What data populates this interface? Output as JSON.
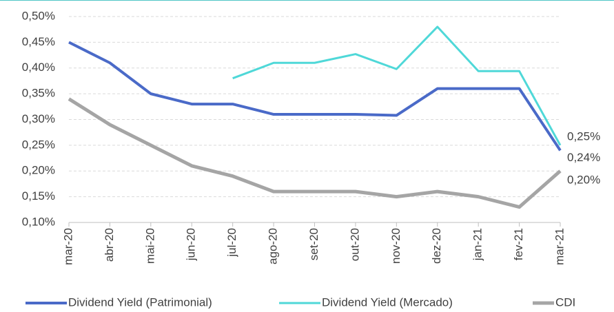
{
  "chart_data": {
    "type": "line",
    "categories": [
      "mar-20",
      "abr-20",
      "mai-20",
      "jun-20",
      "jul-20",
      "ago-20",
      "set-20",
      "out-20",
      "nov-20",
      "dez-20",
      "jan-21",
      "fev-21",
      "mar-21"
    ],
    "series": [
      {
        "name": "Dividend Yield (Patrimonial)",
        "color": "#4a6ac8",
        "values": [
          0.45,
          0.41,
          0.35,
          0.33,
          0.33,
          0.31,
          0.31,
          0.31,
          0.308,
          0.36,
          0.36,
          0.36,
          0.24
        ],
        "value_labels": [
          null,
          null,
          null,
          null,
          null,
          null,
          null,
          null,
          null,
          null,
          null,
          null,
          "0,24%"
        ]
      },
      {
        "name": "Dividend Yield (Mercado)",
        "color": "#4fd8d8",
        "values": [
          null,
          null,
          null,
          null,
          0.38,
          0.41,
          0.41,
          0.427,
          0.398,
          0.48,
          0.394,
          0.394,
          0.25
        ],
        "value_labels": [
          null,
          null,
          null,
          null,
          null,
          null,
          null,
          null,
          null,
          null,
          null,
          null,
          "0,25%"
        ]
      },
      {
        "name": "CDI",
        "color": "#a5a5a5",
        "values": [
          0.34,
          0.29,
          0.25,
          0.21,
          0.19,
          0.16,
          0.16,
          0.16,
          0.15,
          0.16,
          0.15,
          0.13,
          0.2
        ],
        "value_labels": [
          null,
          null,
          null,
          null,
          null,
          null,
          null,
          null,
          null,
          null,
          null,
          null,
          "0,20%"
        ]
      }
    ],
    "ylim": [
      0.1,
      0.5
    ],
    "yticks": [
      {
        "value": 0.1,
        "label": "0,10%"
      },
      {
        "value": 0.15,
        "label": "0,15%"
      },
      {
        "value": 0.2,
        "label": "0,20%"
      },
      {
        "value": 0.25,
        "label": "0,25%"
      },
      {
        "value": 0.3,
        "label": "0,30%"
      },
      {
        "value": 0.35,
        "label": "0,35%"
      },
      {
        "value": 0.4,
        "label": "0,40%"
      },
      {
        "value": 0.45,
        "label": "0,45%"
      },
      {
        "value": 0.5,
        "label": "0,50%"
      }
    ],
    "grid": true,
    "legend": "bottom"
  }
}
